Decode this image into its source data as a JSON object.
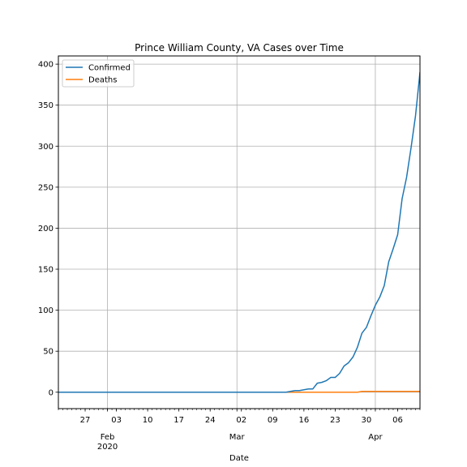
{
  "chart_data": {
    "type": "line",
    "title": "Prince William County, VA Cases over Time",
    "xlabel": "Date",
    "ylabel": "",
    "x_type": "date",
    "xlim": [
      "2020-01-21",
      "2020-04-11"
    ],
    "ylim": [
      -20,
      410
    ],
    "yticks": [
      0,
      50,
      100,
      150,
      200,
      250,
      300,
      350,
      400
    ],
    "grid": true,
    "legend_position": "top-left",
    "x_major_ticks": [
      {
        "date": "2020-02-01",
        "label": "Feb",
        "sublabel": "2020"
      },
      {
        "date": "2020-03-01",
        "label": "Mar",
        "sublabel": ""
      },
      {
        "date": "2020-04-01",
        "label": "Apr",
        "sublabel": ""
      }
    ],
    "x_minor_ticks": [
      {
        "date": "2020-01-27",
        "label": "27"
      },
      {
        "date": "2020-02-03",
        "label": "03"
      },
      {
        "date": "2020-02-10",
        "label": "10"
      },
      {
        "date": "2020-02-17",
        "label": "17"
      },
      {
        "date": "2020-02-24",
        "label": "24"
      },
      {
        "date": "2020-03-02",
        "label": "02"
      },
      {
        "date": "2020-03-09",
        "label": "09"
      },
      {
        "date": "2020-03-16",
        "label": "16"
      },
      {
        "date": "2020-03-23",
        "label": "23"
      },
      {
        "date": "2020-03-30",
        "label": "30"
      },
      {
        "date": "2020-04-06",
        "label": "06"
      }
    ],
    "series": [
      {
        "name": "Confirmed",
        "color": "#1f77b4",
        "points": [
          [
            "2020-01-21",
            0
          ],
          [
            "2020-03-12",
            0
          ],
          [
            "2020-03-13",
            1
          ],
          [
            "2020-03-14",
            2
          ],
          [
            "2020-03-15",
            2
          ],
          [
            "2020-03-16",
            3
          ],
          [
            "2020-03-17",
            4
          ],
          [
            "2020-03-18",
            4
          ],
          [
            "2020-03-19",
            11
          ],
          [
            "2020-03-20",
            12
          ],
          [
            "2020-03-21",
            14
          ],
          [
            "2020-03-22",
            18
          ],
          [
            "2020-03-23",
            18
          ],
          [
            "2020-03-24",
            23
          ],
          [
            "2020-03-25",
            32
          ],
          [
            "2020-03-26",
            36
          ],
          [
            "2020-03-27",
            43
          ],
          [
            "2020-03-28",
            55
          ],
          [
            "2020-03-29",
            72
          ],
          [
            "2020-03-30",
            79
          ],
          [
            "2020-03-31",
            93
          ],
          [
            "2020-04-01",
            106
          ],
          [
            "2020-04-02",
            116
          ],
          [
            "2020-04-03",
            130
          ],
          [
            "2020-04-04",
            159
          ],
          [
            "2020-04-05",
            175
          ],
          [
            "2020-04-06",
            192
          ],
          [
            "2020-04-07",
            236
          ],
          [
            "2020-04-08",
            262
          ],
          [
            "2020-04-09",
            298
          ],
          [
            "2020-04-10",
            337
          ],
          [
            "2020-04-11",
            390
          ],
          [
            "2020-04-12",
            389
          ]
        ]
      },
      {
        "name": "Deaths",
        "color": "#ff7f0e",
        "points": [
          [
            "2020-01-21",
            0
          ],
          [
            "2020-03-28",
            0
          ],
          [
            "2020-03-29",
            1
          ],
          [
            "2020-04-12",
            1
          ]
        ]
      }
    ]
  }
}
